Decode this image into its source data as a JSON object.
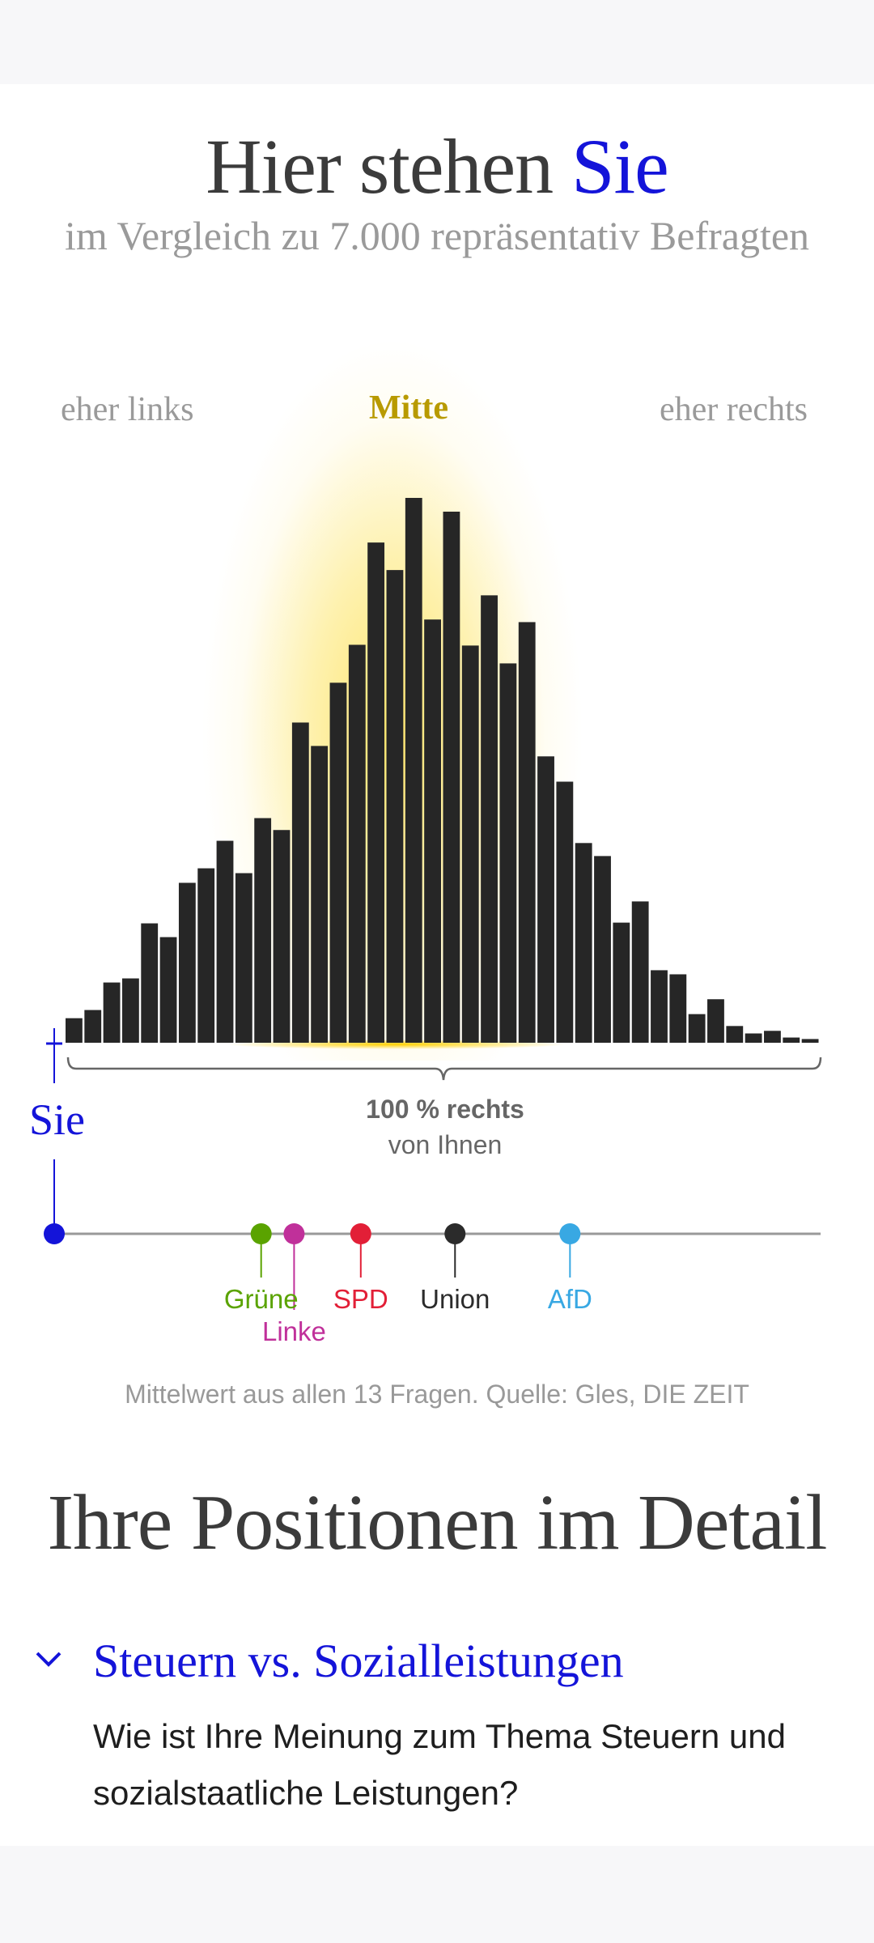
{
  "header": {
    "title_prefix": "Hier stehen",
    "title_highlight": "Sie",
    "subtitle": "im Vergleich zu 7.000 repräsentativ Befragten"
  },
  "colors": {
    "accent": "#1414d9",
    "mitte": "#b89a00",
    "bar": "#262626",
    "axis": "#999999"
  },
  "chart_data": {
    "type": "bar",
    "title": "Hier stehen Sie",
    "zones": [
      "eher links",
      "Mitte",
      "eher rechts"
    ],
    "bins": 40,
    "values": [
      66,
      88,
      162,
      173,
      321,
      284,
      430,
      469,
      543,
      456,
      604,
      572,
      861,
      798,
      968,
      1070,
      1345,
      1271,
      1465,
      1138,
      1428,
      1068,
      1203,
      1020,
      1131,
      770,
      702,
      537,
      502,
      323,
      380,
      195,
      184,
      77,
      117,
      45,
      25,
      32,
      14,
      10
    ],
    "user_label": "Sie",
    "user_position": 0,
    "brace_label_bold": "100 % rechts",
    "brace_label": "von Ihnen",
    "scale": [
      0,
      100
    ],
    "parties": [
      {
        "name": "Sie",
        "position": 0,
        "color": "#1414d9"
      },
      {
        "name": "Grüne",
        "position": 27,
        "color": "#5aa300"
      },
      {
        "name": "Linke",
        "position": 31.3,
        "color": "#c0309a"
      },
      {
        "name": "SPD",
        "position": 40,
        "color": "#e21f37"
      },
      {
        "name": "Union",
        "position": 52.3,
        "color": "#2b2b2b"
      },
      {
        "name": "AfD",
        "position": 67.3,
        "color": "#38a8e3"
      }
    ],
    "source": "Mittelwert aus allen 13 Fragen. Quelle: Gles, DIE ZEIT"
  },
  "detail": {
    "heading": "Ihre Positionen im Detail",
    "accordion_title": "Steuern vs. Sozialleistungen",
    "question": "Wie ist Ihre Meinung zum Thema Steuern und sozialstaatliche Leistungen?",
    "chevron_icon": "chevron-down-icon"
  }
}
